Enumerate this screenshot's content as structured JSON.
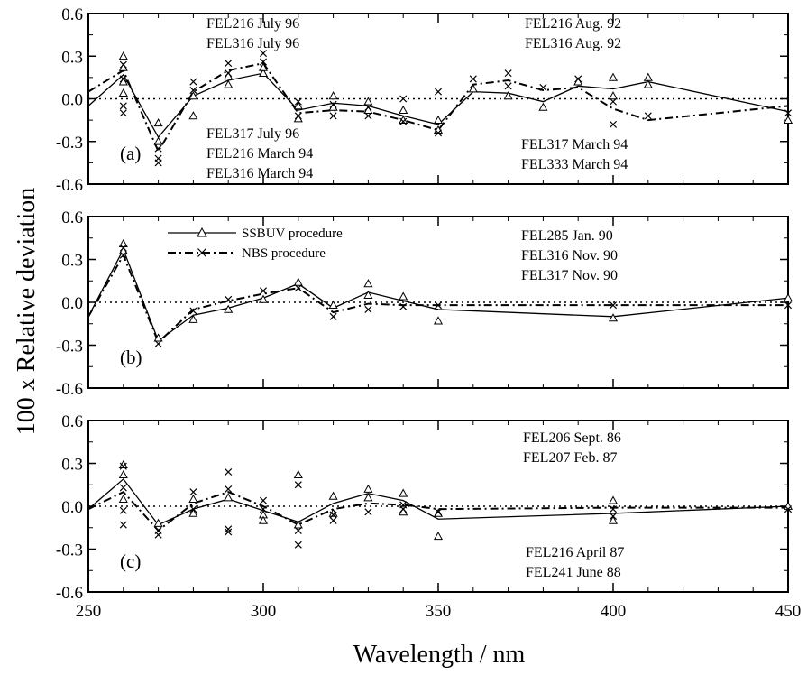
{
  "chart_data": {
    "type": "line",
    "ylabel": "100 x Relative deviation",
    "xlabel": "Wavelength / nm",
    "xlim": [
      250,
      450
    ],
    "ylim": [
      -0.6,
      0.6
    ],
    "xticks": [
      250,
      300,
      350,
      400,
      450
    ],
    "yticks": [
      "0.6",
      "0.3",
      "0.0",
      "-0.3",
      "-0.6"
    ],
    "xtick_labels": [
      "250",
      "300",
      "350",
      "400",
      "450"
    ],
    "grid": false,
    "zero_line": "dotted",
    "legend": {
      "placement": "top-left of panel (b)",
      "entries": [
        {
          "label": "SSBUV  procedure",
          "marker": "triangle",
          "line": "solid"
        },
        {
          "label": "NBS  procedure",
          "marker": "x",
          "line": "dash-dot"
        }
      ]
    },
    "panels": [
      {
        "label": "(a)",
        "annotations": {
          "top_left": [
            "FEL216  July 96",
            "FEL316  July 96"
          ],
          "top_right": [
            "FEL216  Aug. 92",
            "FEL316  Aug. 92"
          ],
          "bottom_left": [
            "FEL317  July 96",
            "FEL216  March 94",
            "FEL316  March 94"
          ],
          "bottom_right": [
            "FEL317  March 94",
            "FEL333  March 94"
          ]
        },
        "series": [
          {
            "name": "SSBUV  procedure",
            "x": [
              250,
              260,
              270,
              280,
              290,
              300,
              310,
              320,
              330,
              340,
              350,
              360,
              370,
              380,
              390,
              400,
              410,
              450
            ],
            "y": [
              -0.05,
              0.17,
              -0.27,
              0.02,
              0.13,
              0.18,
              -0.08,
              -0.03,
              -0.05,
              -0.12,
              -0.18,
              0.05,
              0.04,
              -0.02,
              0.09,
              0.07,
              0.12,
              -0.09
            ]
          },
          {
            "name": "NBS  procedure",
            "x": [
              250,
              260,
              270,
              280,
              290,
              300,
              310,
              320,
              330,
              340,
              350,
              360,
              370,
              380,
              390,
              400,
              410,
              450
            ],
            "y": [
              0.05,
              0.2,
              -0.37,
              0.05,
              0.2,
              0.25,
              -0.1,
              -0.08,
              -0.09,
              -0.15,
              -0.22,
              0.1,
              0.13,
              0.06,
              0.08,
              -0.07,
              -0.15,
              -0.05
            ]
          }
        ],
        "scatter": {
          "triangle": [
            [
              260,
              0.3
            ],
            [
              260,
              0.22
            ],
            [
              260,
              0.12
            ],
            [
              260,
              0.04
            ],
            [
              270,
              -0.17
            ],
            [
              270,
              -0.3
            ],
            [
              280,
              -0.12
            ],
            [
              280,
              0.02
            ],
            [
              290,
              0.1
            ],
            [
              290,
              0.16
            ],
            [
              300,
              0.18
            ],
            [
              300,
              0.22
            ],
            [
              310,
              -0.05
            ],
            [
              310,
              -0.14
            ],
            [
              320,
              0.02
            ],
            [
              320,
              -0.06
            ],
            [
              330,
              -0.02
            ],
            [
              330,
              -0.08
            ],
            [
              340,
              -0.08
            ],
            [
              340,
              -0.15
            ],
            [
              350,
              -0.15
            ],
            [
              350,
              -0.22
            ],
            [
              360,
              0.07
            ],
            [
              370,
              0.02
            ],
            [
              380,
              -0.06
            ],
            [
              390,
              0.12
            ],
            [
              400,
              0.15
            ],
            [
              400,
              0.02
            ],
            [
              410,
              0.15
            ],
            [
              410,
              0.1
            ],
            [
              450,
              -0.15
            ]
          ],
          "x": [
            [
              260,
              0.24
            ],
            [
              260,
              0.14
            ],
            [
              260,
              -0.05
            ],
            [
              260,
              -0.1
            ],
            [
              270,
              -0.35
            ],
            [
              270,
              -0.42
            ],
            [
              270,
              -0.45
            ],
            [
              280,
              0.12
            ],
            [
              280,
              0.06
            ],
            [
              290,
              0.25
            ],
            [
              290,
              0.18
            ],
            [
              300,
              0.32
            ],
            [
              300,
              0.26
            ],
            [
              310,
              -0.02
            ],
            [
              310,
              -0.12
            ],
            [
              320,
              -0.04
            ],
            [
              320,
              -0.12
            ],
            [
              330,
              -0.06
            ],
            [
              330,
              -0.12
            ],
            [
              340,
              0.0
            ],
            [
              340,
              -0.16
            ],
            [
              350,
              0.05
            ],
            [
              350,
              -0.24
            ],
            [
              360,
              0.14
            ],
            [
              370,
              0.18
            ],
            [
              370,
              0.09
            ],
            [
              380,
              0.08
            ],
            [
              390,
              0.14
            ],
            [
              400,
              -0.02
            ],
            [
              400,
              -0.18
            ],
            [
              410,
              -0.12
            ],
            [
              450,
              -0.1
            ]
          ]
        }
      },
      {
        "label": "(b)",
        "annotations": {
          "top_right": [
            "FEL285  Jan. 90",
            "FEL316  Nov. 90",
            "FEL317  Nov. 90"
          ]
        },
        "series": [
          {
            "name": "SSBUV  procedure",
            "x": [
              250,
              260,
              270,
              280,
              290,
              300,
              310,
              320,
              330,
              340,
              350,
              400,
              450
            ],
            "y": [
              -0.1,
              0.37,
              -0.27,
              -0.09,
              -0.04,
              0.03,
              0.13,
              -0.04,
              0.07,
              0.01,
              -0.05,
              -0.1,
              0.03
            ]
          },
          {
            "name": "NBS  procedure",
            "x": [
              250,
              260,
              270,
              280,
              290,
              300,
              310,
              320,
              330,
              340,
              350,
              400,
              450
            ],
            "y": [
              -0.1,
              0.33,
              -0.28,
              -0.05,
              0.01,
              0.06,
              0.1,
              -0.07,
              -0.01,
              -0.02,
              -0.02,
              -0.02,
              -0.02
            ]
          }
        ],
        "scatter": {
          "triangle": [
            [
              260,
              0.41
            ],
            [
              260,
              0.36
            ],
            [
              270,
              -0.25
            ],
            [
              280,
              -0.12
            ],
            [
              290,
              -0.05
            ],
            [
              300,
              0.02
            ],
            [
              310,
              0.14
            ],
            [
              320,
              -0.02
            ],
            [
              330,
              0.13
            ],
            [
              330,
              0.05
            ],
            [
              340,
              0.04
            ],
            [
              350,
              -0.13
            ],
            [
              400,
              -0.11
            ],
            [
              450,
              0.03
            ]
          ],
          "x": [
            [
              260,
              0.38
            ],
            [
              260,
              0.33
            ],
            [
              270,
              -0.29
            ],
            [
              280,
              -0.06
            ],
            [
              290,
              0.02
            ],
            [
              300,
              0.08
            ],
            [
              310,
              0.1
            ],
            [
              320,
              -0.1
            ],
            [
              330,
              -0.05
            ],
            [
              340,
              -0.03
            ],
            [
              350,
              -0.02
            ],
            [
              400,
              -0.02
            ],
            [
              450,
              -0.02
            ]
          ]
        }
      },
      {
        "label": "(c)",
        "annotations": {
          "top_right": [
            "FEL206  Sept. 86",
            "FEL207  Feb. 87"
          ],
          "bottom_right": [
            "FEL216  April 87",
            "FEL241  June 88"
          ]
        },
        "series": [
          {
            "name": "SSBUV  procedure",
            "x": [
              250,
              260,
              270,
              280,
              290,
              300,
              310,
              320,
              330,
              340,
              350,
              400,
              450
            ],
            "y": [
              -0.02,
              0.19,
              -0.13,
              -0.02,
              0.05,
              -0.03,
              -0.11,
              0.02,
              0.09,
              0.04,
              -0.09,
              -0.05,
              0.0
            ]
          },
          {
            "name": "NBS  procedure",
            "x": [
              250,
              260,
              270,
              280,
              290,
              300,
              310,
              320,
              330,
              340,
              350,
              400,
              450
            ],
            "y": [
              -0.02,
              0.1,
              -0.17,
              0.02,
              0.1,
              0.0,
              -0.13,
              -0.02,
              0.02,
              0.01,
              -0.02,
              -0.01,
              -0.01
            ]
          }
        ],
        "scatter": {
          "triangle": [
            [
              260,
              0.29
            ],
            [
              260,
              0.22
            ],
            [
              260,
              0.05
            ],
            [
              270,
              -0.12
            ],
            [
              280,
              0.05
            ],
            [
              280,
              -0.05
            ],
            [
              290,
              0.06
            ],
            [
              300,
              -0.06
            ],
            [
              300,
              -0.1
            ],
            [
              310,
              0.22
            ],
            [
              310,
              -0.13
            ],
            [
              320,
              0.07
            ],
            [
              320,
              -0.05
            ],
            [
              330,
              0.12
            ],
            [
              330,
              0.06
            ],
            [
              340,
              0.09
            ],
            [
              340,
              -0.04
            ],
            [
              350,
              -0.05
            ],
            [
              350,
              -0.21
            ],
            [
              400,
              0.04
            ],
            [
              400,
              -0.1
            ],
            [
              450,
              0.0
            ]
          ],
          "x": [
            [
              260,
              0.28
            ],
            [
              260,
              0.13
            ],
            [
              260,
              -0.03
            ],
            [
              260,
              -0.13
            ],
            [
              270,
              -0.17
            ],
            [
              270,
              -0.2
            ],
            [
              280,
              0.1
            ],
            [
              280,
              -0.02
            ],
            [
              290,
              0.24
            ],
            [
              290,
              0.12
            ],
            [
              290,
              -0.16
            ],
            [
              290,
              -0.18
            ],
            [
              300,
              0.04
            ],
            [
              300,
              -0.02
            ],
            [
              310,
              0.15
            ],
            [
              310,
              -0.17
            ],
            [
              310,
              -0.27
            ],
            [
              320,
              -0.06
            ],
            [
              320,
              -0.1
            ],
            [
              330,
              -0.04
            ],
            [
              340,
              0.01
            ],
            [
              340,
              -0.02
            ],
            [
              350,
              -0.04
            ],
            [
              400,
              -0.02
            ],
            [
              400,
              -0.07
            ],
            [
              450,
              -0.02
            ]
          ]
        }
      }
    ]
  }
}
